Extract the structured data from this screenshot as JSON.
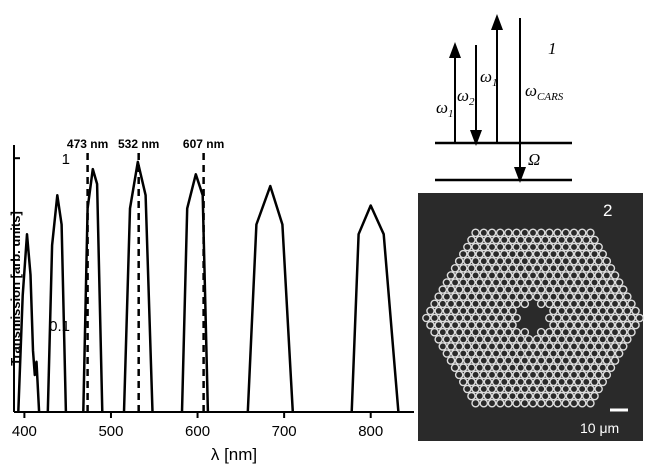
{
  "chart_data": {
    "type": "line",
    "xlabel": "λ [nm]",
    "ylabel": "Transmission [arb. units]",
    "log_y": true,
    "xlim": [
      388,
      850
    ],
    "xticks": [
      400,
      500,
      600,
      700,
      800
    ],
    "ylim": [
      0.03,
      1.2
    ],
    "yticks": [
      0.1,
      1
    ],
    "x": [
      393,
      398,
      403,
      407,
      410,
      412,
      414,
      417,
      422,
      427,
      432,
      438,
      443,
      448,
      458,
      468,
      473,
      479,
      484,
      490,
      502,
      515,
      522,
      531,
      540,
      548,
      565,
      582,
      588,
      598,
      606,
      612,
      635,
      658,
      668,
      684,
      698,
      710,
      744,
      778,
      786,
      800,
      815,
      832
    ],
    "series": [
      {
        "color": "#000000",
        "values": [
          0.03,
          0.15,
          0.35,
          0.2,
          0.07,
          0.05,
          0.06,
          0.03,
          null,
          0.03,
          0.3,
          0.6,
          0.4,
          0.03,
          null,
          0.03,
          0.5,
          0.86,
          0.7,
          0.03,
          null,
          0.03,
          0.5,
          0.95,
          0.6,
          0.03,
          null,
          0.03,
          0.5,
          0.8,
          0.6,
          0.03,
          null,
          0.03,
          0.4,
          0.68,
          0.4,
          0.03,
          null,
          0.03,
          0.35,
          0.52,
          0.35,
          0.03
        ]
      }
    ],
    "annotations": [
      {
        "x": 473,
        "label": "473 nm"
      },
      {
        "x": 532,
        "label": "532 nm"
      },
      {
        "x": 607,
        "label": "607 nm"
      }
    ]
  },
  "diagram": {
    "label": "1",
    "arrows": [
      {
        "symbol": "ω",
        "sub": "1"
      },
      {
        "symbol": "ω",
        "sub": "2"
      },
      {
        "symbol": "ω",
        "sub": "1"
      },
      {
        "symbol": "ω",
        "sub": "CARS"
      },
      {
        "symbol": "Ω"
      }
    ]
  },
  "image": {
    "label": "2",
    "scale": "10 μm"
  }
}
